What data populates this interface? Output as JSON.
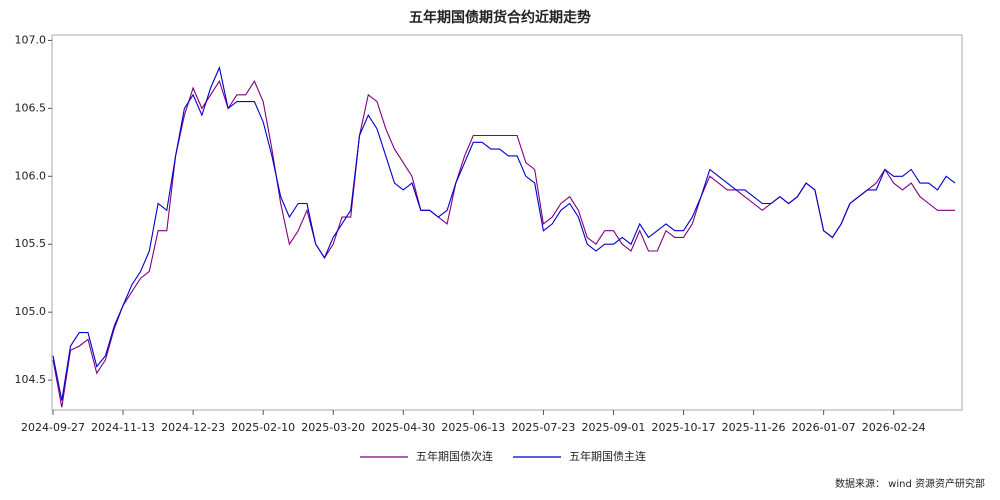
{
  "chart_data": {
    "type": "line",
    "title": "五年期国债期货合约近期走势",
    "source": "数据来源： wind  资源资产研究部",
    "categories": [
      "2024-09-27",
      null,
      null,
      null,
      null,
      null,
      null,
      null,
      "2024-11-13",
      null,
      null,
      null,
      null,
      null,
      null,
      null,
      "2024-12-23",
      null,
      null,
      null,
      null,
      null,
      null,
      null,
      "2025-02-10",
      null,
      null,
      null,
      null,
      null,
      null,
      null,
      "2025-03-20",
      null,
      null,
      null,
      null,
      null,
      null,
      null,
      "2025-04-30",
      null,
      null,
      null,
      null,
      null,
      null,
      null,
      "2025-06-13",
      null,
      null,
      null,
      null,
      null,
      null,
      null,
      "2025-07-23",
      null,
      null,
      null,
      null,
      null,
      null,
      null,
      "2025-09-01",
      null,
      null,
      null,
      null,
      null,
      null,
      null,
      "2025-10-17",
      null,
      null,
      null,
      null,
      null,
      null,
      null,
      "2025-11-26",
      null,
      null,
      null,
      null,
      null,
      null,
      null,
      "2026-01-07",
      null,
      null,
      null,
      null,
      null,
      null,
      null,
      "2026-02-24",
      null,
      null,
      null,
      null,
      null,
      null,
      null
    ],
    "series": [
      {
        "name": "五年期国债次连",
        "color": "#800080",
        "values": [
          104.65,
          104.3,
          104.72,
          104.75,
          104.8,
          104.55,
          104.65,
          104.88,
          105.05,
          105.15,
          105.25,
          105.3,
          105.6,
          105.6,
          106.15,
          106.45,
          106.65,
          106.5,
          106.6,
          106.7,
          106.5,
          106.6,
          106.6,
          106.7,
          106.55,
          106.2,
          105.8,
          105.5,
          105.6,
          105.75,
          105.5,
          105.4,
          105.5,
          105.7,
          105.7,
          106.3,
          106.6,
          106.55,
          106.35,
          106.2,
          106.1,
          106.0,
          105.75,
          105.75,
          105.7,
          105.65,
          105.95,
          106.15,
          106.3,
          106.3,
          106.3,
          106.3,
          106.3,
          106.3,
          106.1,
          106.05,
          105.65,
          105.7,
          105.8,
          105.85,
          105.75,
          105.55,
          105.5,
          105.6,
          105.6,
          105.5,
          105.45,
          105.6,
          105.45,
          105.45,
          105.6,
          105.55,
          105.55,
          105.65,
          105.85,
          106.0,
          105.95,
          105.9,
          105.9,
          105.85,
          105.8,
          105.75,
          105.8,
          105.85,
          105.8,
          105.85,
          105.95,
          105.9,
          105.6,
          105.55,
          105.65,
          105.8,
          105.85,
          105.9,
          105.95,
          106.05,
          105.95,
          105.9,
          105.95,
          105.85,
          105.8,
          105.75,
          105.75,
          105.75
        ]
      },
      {
        "name": "五年期国债主连",
        "color": "#0000cc",
        "values": [
          104.68,
          104.35,
          104.75,
          104.85,
          104.85,
          104.6,
          104.68,
          104.9,
          105.05,
          105.2,
          105.3,
          105.45,
          105.8,
          105.75,
          106.15,
          106.5,
          106.6,
          106.45,
          106.65,
          106.8,
          106.5,
          106.55,
          106.55,
          106.55,
          106.4,
          106.15,
          105.85,
          105.7,
          105.8,
          105.8,
          105.5,
          105.4,
          105.55,
          105.65,
          105.75,
          106.3,
          106.45,
          106.35,
          106.15,
          105.95,
          105.9,
          105.95,
          105.75,
          105.75,
          105.7,
          105.75,
          105.95,
          106.1,
          106.25,
          106.25,
          106.2,
          106.2,
          106.15,
          106.15,
          106.0,
          105.95,
          105.6,
          105.65,
          105.75,
          105.8,
          105.7,
          105.5,
          105.45,
          105.5,
          105.5,
          105.55,
          105.5,
          105.65,
          105.55,
          105.6,
          105.65,
          105.6,
          105.6,
          105.7,
          105.85,
          106.05,
          106.0,
          105.95,
          105.9,
          105.9,
          105.85,
          105.8,
          105.8,
          105.85,
          105.8,
          105.85,
          105.95,
          105.9,
          105.6,
          105.55,
          105.65,
          105.8,
          105.85,
          105.9,
          105.9,
          106.05,
          106.0,
          106.0,
          106.05,
          105.95,
          105.95,
          105.9,
          106.0,
          105.95
        ]
      }
    ],
    "ylim": [
      104.28,
      107.04
    ],
    "yticks": [
      104.5,
      {
        "value": 105.0,
        "label": "105.0"
      },
      105.5,
      {
        "value": 106.0,
        "label": "106.0"
      },
      106.5,
      {
        "value": 107.0,
        "label": "107.0"
      }
    ],
    "grid": false
  }
}
